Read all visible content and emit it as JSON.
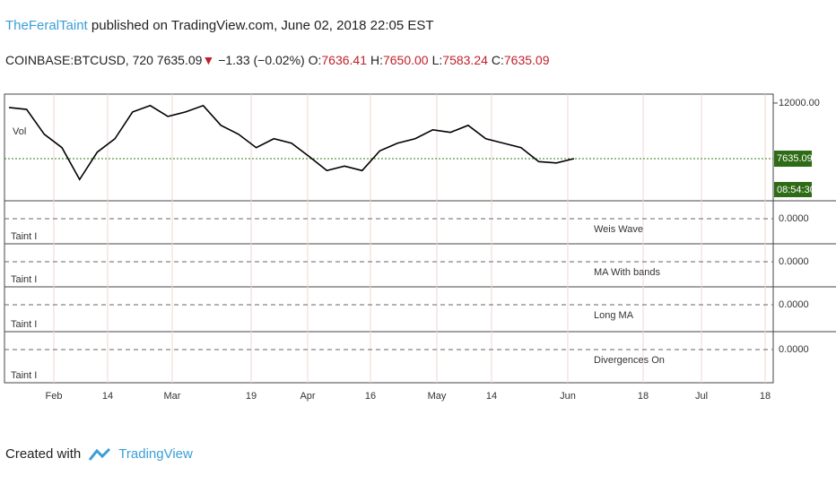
{
  "header": {
    "author": "TheFeralTaint",
    "published": "published on TradingView.com, June 02, 2018 22:05 EST"
  },
  "symbol": {
    "name": "COINBASE:BTCUSD, 720",
    "last": "7635.09",
    "arrow": "▼",
    "change": "−1.33 (−0.02%)",
    "ohlc": [
      {
        "label": "O:",
        "value": "7636.41"
      },
      {
        "label": "H:",
        "value": "7650.00"
      },
      {
        "label": "L:",
        "value": "7583.24"
      },
      {
        "label": "C:",
        "value": "7635.09"
      }
    ]
  },
  "chart_data": {
    "type": "line",
    "series": [
      {
        "name": "Vol",
        "color": "#000000",
        "values": [
          11650,
          11500,
          9550,
          8500,
          6000,
          8150,
          9200,
          11300,
          11800,
          10950,
          11300,
          11800,
          10250,
          9550,
          8500,
          9200,
          8850,
          7800,
          6700,
          7050,
          6700,
          8250,
          8850,
          9200,
          9900,
          9700,
          10250,
          9200,
          8850,
          8500,
          7400,
          7300,
          7635
        ]
      }
    ],
    "ylim": [
      4470,
      12700
    ],
    "yticks": [
      {
        "value": 12000,
        "label": "12000.00"
      }
    ],
    "last_price": {
      "value": 7635.09,
      "label": "7635.09"
    },
    "countdown": "08:54:30",
    "xticks": [
      "Feb",
      "14",
      "Mar",
      "19",
      "Apr",
      "16",
      "May",
      "14",
      "Jun",
      "18",
      "Jul",
      "18"
    ]
  },
  "panes": [
    {
      "name": "Weis Wave",
      "short": "Taint I",
      "zero": "0.0000"
    },
    {
      "name": "MA With bands",
      "short": "Taint I",
      "zero": "0.0000"
    },
    {
      "name": "Long MA",
      "short": "Taint I",
      "zero": "0.0000"
    },
    {
      "name": "Divergences On",
      "short": "Taint I",
      "zero": "0.0000"
    }
  ],
  "footer": {
    "created": "Created with",
    "brand": "TradingView"
  }
}
